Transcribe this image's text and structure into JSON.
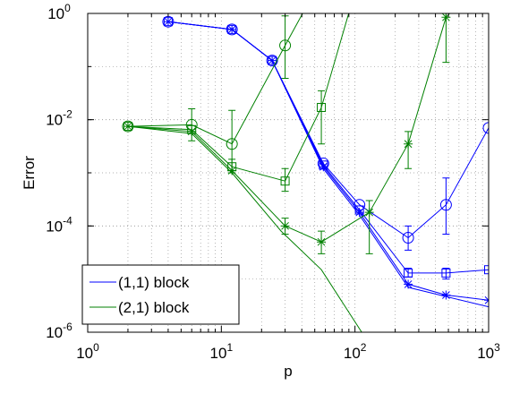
{
  "chart_data": {
    "type": "line",
    "xlabel": "p",
    "ylabel": "Error",
    "xscale": "log",
    "yscale": "log",
    "grid": true,
    "legend_loc": "lower left",
    "xlim": [
      1,
      1000
    ],
    "ylim": [
      1e-06,
      1
    ],
    "xticks": [
      {
        "value": 1,
        "label": "10^0"
      },
      {
        "value": 10,
        "label": "10^1"
      },
      {
        "value": 100,
        "label": "10^2"
      },
      {
        "value": 1000,
        "label": "10^3"
      }
    ],
    "yticks": [
      {
        "value": 1e-06,
        "label": "10^-6"
      },
      {
        "value": 0.0001,
        "label": "10^-4"
      },
      {
        "value": 0.01,
        "label": "10^-2"
      },
      {
        "value": 1,
        "label": "10^0"
      }
    ],
    "series": [
      {
        "name": "(1,1) block",
        "color": "#0000ff",
        "lines": [
          {
            "marker": "o",
            "x": [
              4,
              12,
              24,
              58,
              108,
              250,
              480,
              1000
            ],
            "values": [
              0.7,
              0.5,
              0.13,
              0.0015,
              0.00025,
              6e-05,
              0.00025,
              0.007
            ],
            "err_low": [
              null,
              null,
              null,
              null,
              null,
              3.5e-05,
              7e-05,
              null
            ],
            "err_high": [
              null,
              null,
              null,
              null,
              null,
              0.0001,
              0.0008,
              null
            ]
          },
          {
            "marker": "s",
            "x": [
              4,
              12,
              24,
              58,
              108,
              250,
              480,
              1000
            ],
            "values": [
              0.7,
              0.5,
              0.13,
              0.0014,
              0.0002,
              1.3e-05,
              1.3e-05,
              1.5e-05
            ],
            "err_low": [
              null,
              null,
              null,
              null,
              null,
              1.1e-05,
              1e-05,
              null
            ],
            "err_high": [
              null,
              null,
              null,
              null,
              null,
              1.6e-05,
              1.6e-05,
              null
            ]
          },
          {
            "marker": "*",
            "x": [
              4,
              12,
              24,
              58,
              108,
              250,
              480,
              1000
            ],
            "values": [
              0.7,
              0.5,
              0.13,
              0.0013,
              0.00018,
              8e-06,
              5e-06,
              4e-06
            ]
          },
          {
            "marker": "none",
            "x": [
              4,
              12,
              24,
              58,
              108,
              250,
              1000
            ],
            "values": [
              0.7,
              0.5,
              0.13,
              0.0012,
              0.00016,
              7e-06,
              3e-06
            ]
          }
        ]
      },
      {
        "name": "(2,1) block",
        "color": "#008000",
        "lines": [
          {
            "marker": "o",
            "x": [
              2,
              6,
              12,
              30,
              60
            ],
            "values": [
              0.0075,
              0.008,
              0.0035,
              0.25,
              6
            ],
            "err_low": [
              null,
              0.004,
              0.001,
              0.06,
              null
            ],
            "err_high": [
              null,
              0.016,
              0.015,
              0.9,
              null
            ]
          },
          {
            "marker": "s",
            "x": [
              2,
              6,
              12,
              30,
              56,
              108
            ],
            "values": [
              0.0075,
              0.0065,
              0.0013,
              0.0007,
              0.017,
              5
            ],
            "err_low": [
              null,
              null,
              0.001,
              0.00045,
              0.0035,
              null
            ],
            "err_high": [
              null,
              null,
              0.0018,
              0.0012,
              0.035,
              null
            ]
          },
          {
            "marker": "*",
            "x": [
              2,
              6,
              12,
              30,
              56,
              128,
              250,
              480
            ],
            "values": [
              0.0075,
              0.006,
              0.0011,
              0.0001,
              5e-05,
              0.00018,
              0.0035,
              0.85
            ],
            "err_low": [
              null,
              null,
              null,
              7e-05,
              3e-05,
              3e-05,
              0.0012,
              0.12
            ],
            "err_high": [
              null,
              null,
              null,
              0.00014,
              8e-05,
              0.0003,
              0.006,
              1
            ]
          },
          {
            "marker": "none",
            "x": [
              2,
              6,
              12,
              28,
              56,
              128
            ],
            "values": [
              0.0075,
              0.0055,
              0.001,
              8e-05,
              1.5e-05,
              6e-07
            ]
          }
        ]
      }
    ]
  }
}
